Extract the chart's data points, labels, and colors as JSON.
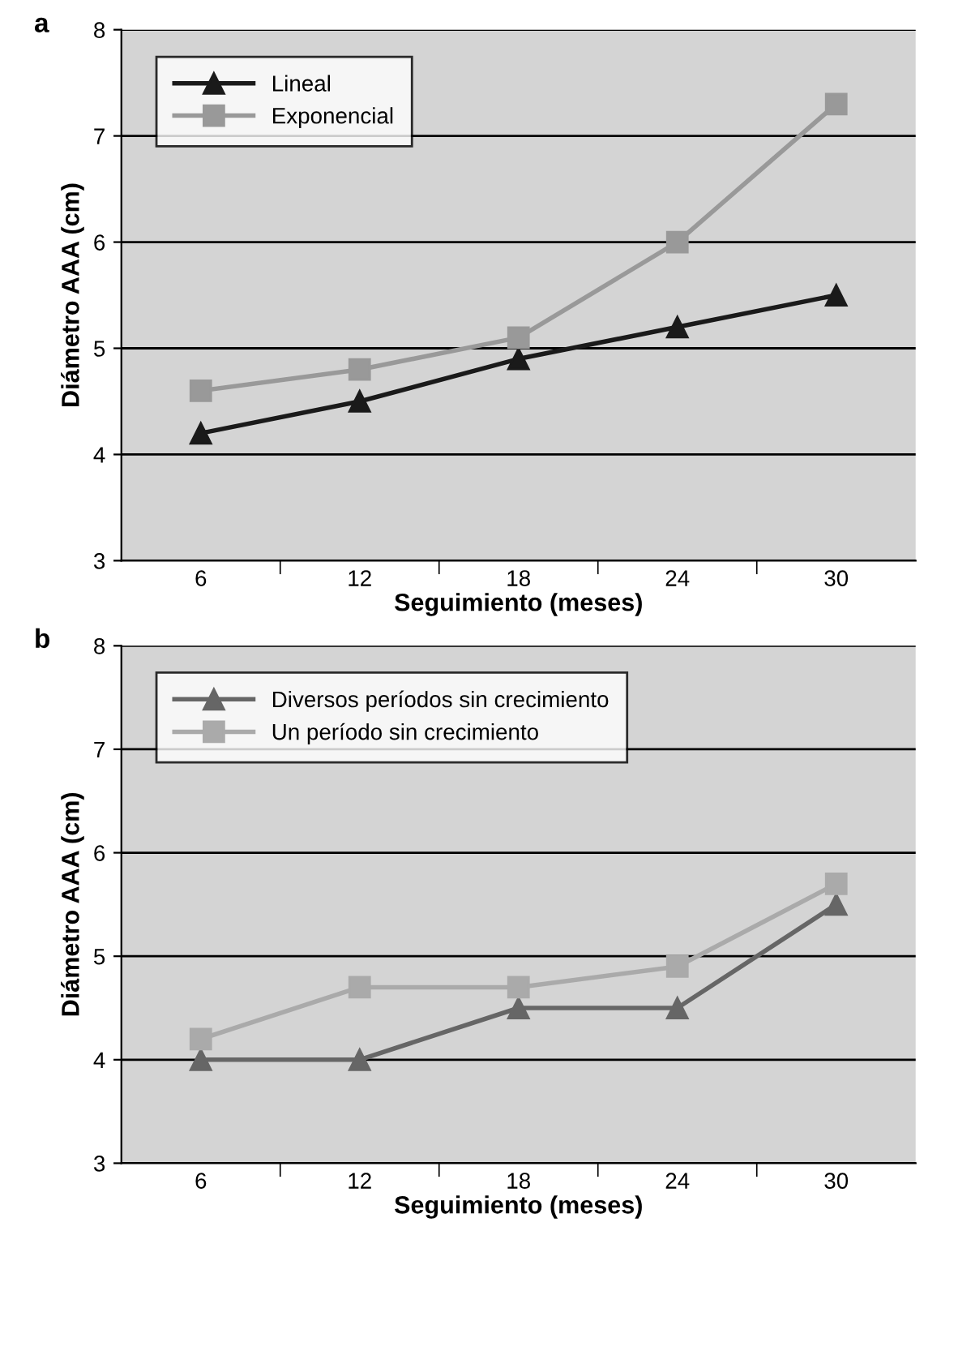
{
  "chart_data": [
    {
      "type": "line",
      "title": "a",
      "xlabel": "Seguimiento (meses)",
      "ylabel": "Diámetro AAA (cm)",
      "categories": [
        "6",
        "12",
        "18",
        "24",
        "30"
      ],
      "series": [
        {
          "name": "Lineal",
          "color": "#1a1a1a",
          "marker": "triangle",
          "values": [
            4.2,
            4.5,
            4.9,
            5.2,
            5.5
          ]
        },
        {
          "name": "Exponencial",
          "color": "#999999",
          "marker": "square",
          "values": [
            4.6,
            4.8,
            5.1,
            6.0,
            7.3
          ]
        }
      ],
      "ylim": [
        3,
        8
      ],
      "yticks": [
        3,
        4,
        5,
        6,
        7,
        8
      ],
      "grid": "y",
      "legend": "top left",
      "line_style": "solid"
    },
    {
      "type": "line",
      "title": "b",
      "xlabel": "Seguimiento (meses)",
      "ylabel": "Diámetro AAA (cm)",
      "categories": [
        "6",
        "12",
        "18",
        "24",
        "30"
      ],
      "series": [
        {
          "name": "Diversos períodos sin crecimiento",
          "color": "#666666",
          "marker": "triangle",
          "values": [
            4.0,
            4.0,
            4.5,
            4.5,
            5.5
          ]
        },
        {
          "name": "Un período sin crecimiento",
          "color": "#aaaaaa",
          "marker": "square",
          "values": [
            4.2,
            4.7,
            4.7,
            4.9,
            5.7
          ]
        }
      ],
      "ylim": [
        3,
        8
      ],
      "yticks": [
        3,
        4,
        5,
        6,
        7,
        8
      ],
      "grid": "y",
      "legend": "top left",
      "line_style": "solid"
    }
  ]
}
